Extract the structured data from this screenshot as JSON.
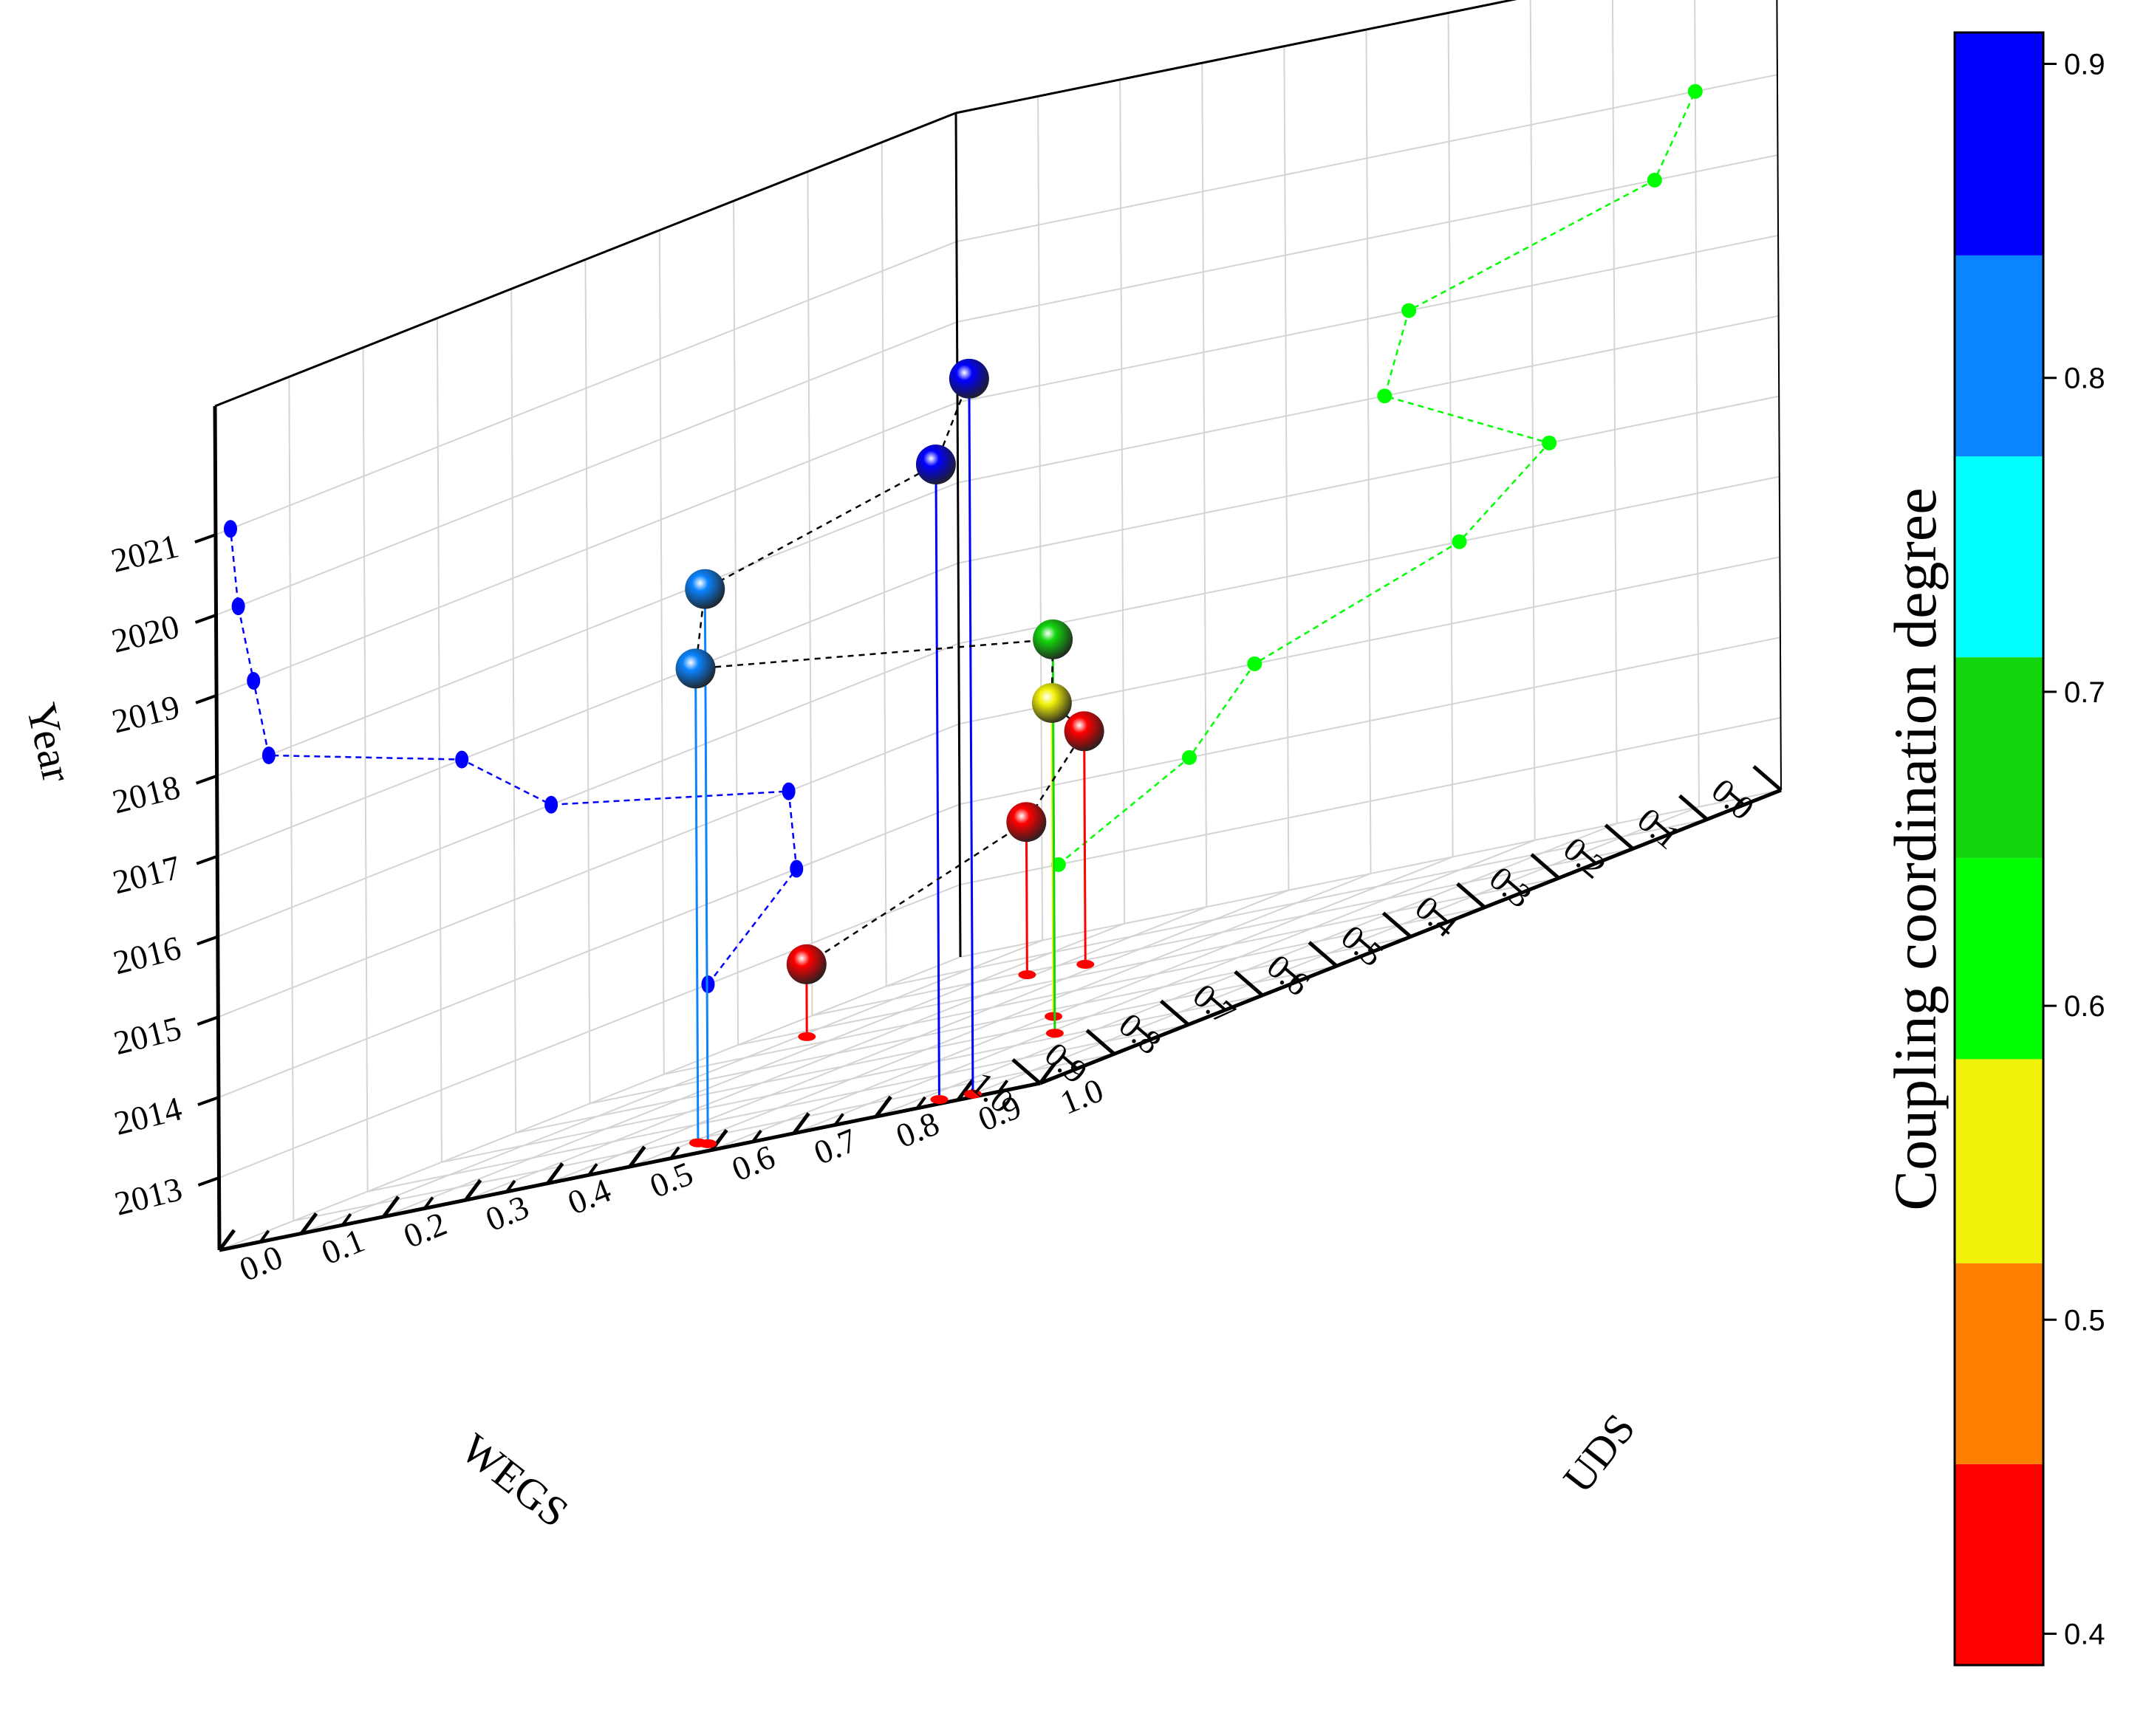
{
  "chart_data": {
    "type": "scatter",
    "subtype": "3d-scatter-drop-lines",
    "title": "",
    "axes": {
      "x": {
        "label": "WEGS",
        "range": [
          0,
          1
        ],
        "ticks": [
          "0.0",
          "0.1",
          "0.2",
          "0.3",
          "0.4",
          "0.5",
          "0.6",
          "0.7",
          "0.8",
          "0.9",
          "1.0"
        ]
      },
      "y": {
        "label": "UDS",
        "range": [
          0,
          1
        ],
        "ticks": [
          "0.0",
          "0.1",
          "0.2",
          "0.3",
          "0.4",
          "0.5",
          "0.6",
          "0.7",
          "0.8",
          "0.9",
          "1.0"
        ]
      },
      "z": {
        "label": "Year",
        "range": [
          2012.1,
          2022.6
        ],
        "ticks": [
          "2013",
          "2014",
          "2015",
          "2016",
          "2017",
          "2018",
          "2019",
          "2020",
          "2021"
        ]
      }
    },
    "grid": true,
    "colorbar": {
      "title": "Coupling coordination degree",
      "range": [
        0.39,
        0.91
      ],
      "ticks": [
        "0.4",
        "0.5",
        "0.6",
        "0.7",
        "0.8",
        "0.9"
      ],
      "bands": [
        {
          "from": 0.39,
          "to": 0.454,
          "color": "#ff0000"
        },
        {
          "from": 0.454,
          "to": 0.518,
          "color": "#ff8000"
        },
        {
          "from": 0.518,
          "to": 0.583,
          "color": "#f2f20a"
        },
        {
          "from": 0.583,
          "to": 0.647,
          "color": "#00ff00"
        },
        {
          "from": 0.647,
          "to": 0.711,
          "color": "#13d60d"
        },
        {
          "from": 0.711,
          "to": 0.775,
          "color": "#00ffff"
        },
        {
          "from": 0.775,
          "to": 0.839,
          "color": "#0a84ff"
        },
        {
          "from": 0.839,
          "to": 0.91,
          "color": "#0000ff"
        }
      ]
    },
    "series": [
      {
        "x_wegs": [
          0.34,
          0.22,
          0.23,
          0.55,
          0.67,
          0.93,
          0.95,
          0.97,
          0.98
        ],
        "y_uds": [
          0.12,
          0.28,
          0.36,
          0.61,
          0.72,
          0.52,
          0.55,
          0.85,
          0.9
        ],
        "z_year": [
          2013,
          2014,
          2015,
          2016,
          2017,
          2018,
          2019,
          2020,
          2021
        ],
        "color_value": [
          0.43,
          0.44,
          0.45,
          0.56,
          0.65,
          0.79,
          0.8,
          0.86,
          0.88
        ]
      }
    ],
    "projections": {
      "wegs_year_wall_color": "#0000ff",
      "uds_year_wall_color": "#00ff00",
      "floor_marker_color": "#ff0000",
      "path_color": "#000000"
    }
  }
}
